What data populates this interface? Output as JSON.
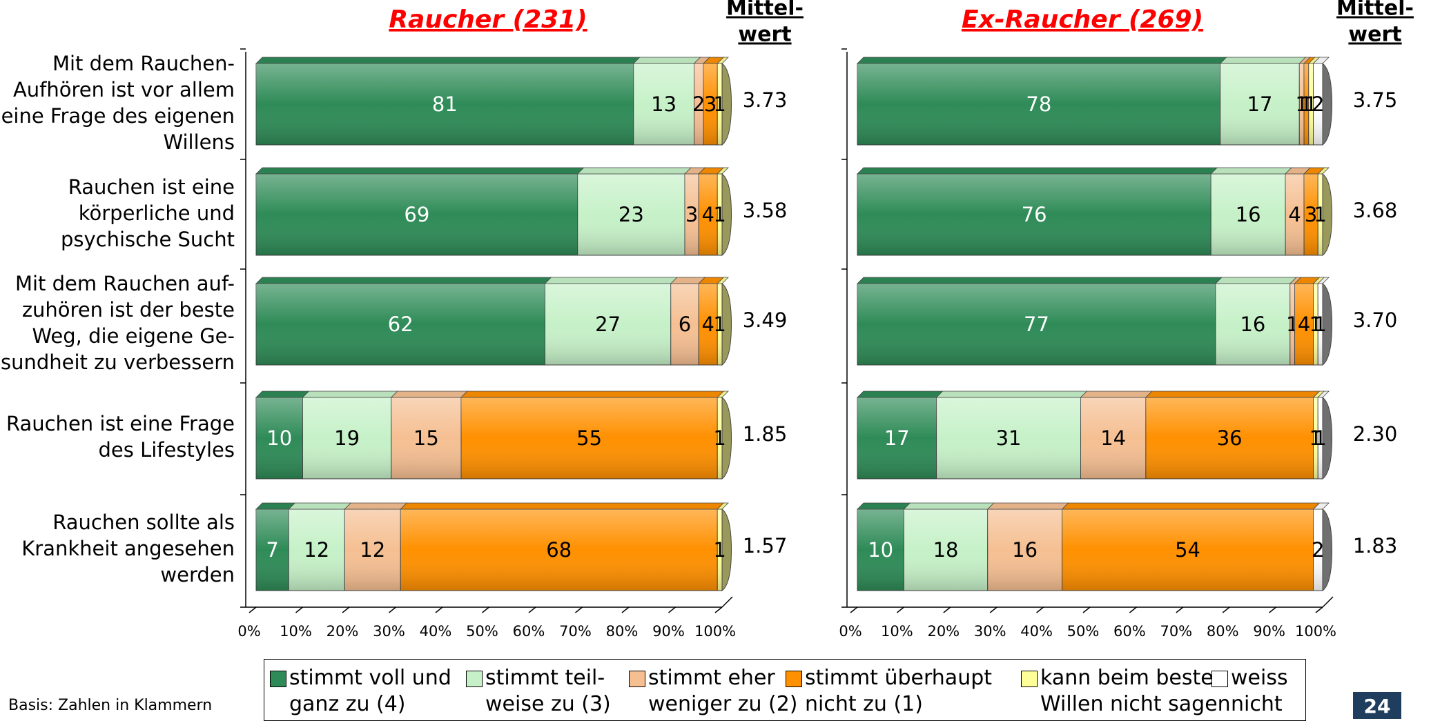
{
  "chart_data": [
    {
      "type": "bar",
      "orientation": "horizontal",
      "stacked": "percent",
      "title": "Raucher (231)",
      "mean_header": "Mittel-\nwert",
      "categories": [
        "Mit dem Rauchen-\nAufhören ist vor allem\neine Frage des eigenen\nWillens",
        "Rauchen ist eine\nkörperliche und\npsychische Sucht",
        "Mit dem Rauchen auf-\nzuhören ist der beste\nWeg, die eigene Ge-\nsundheit zu verbessern",
        "Rauchen ist eine Frage\ndes Lifestyles",
        "Rauchen sollte als\nKrankheit angesehen\nwerden"
      ],
      "series": [
        {
          "values": [
            81,
            69,
            62,
            10,
            7
          ]
        },
        {
          "values": [
            13,
            23,
            27,
            19,
            12
          ]
        },
        {
          "values": [
            2,
            3,
            6,
            15,
            12
          ]
        },
        {
          "values": [
            3,
            4,
            4,
            55,
            68
          ]
        },
        {
          "values": [
            1,
            1,
            1,
            1,
            1
          ]
        },
        {
          "values": [
            0,
            0,
            0,
            0,
            0
          ]
        }
      ],
      "means": [
        "3.73",
        "3.58",
        "3.49",
        "1.85",
        "1.57"
      ],
      "xlim": [
        0,
        100
      ],
      "xticks": [
        "0%",
        "10%",
        "20%",
        "30%",
        "40%",
        "50%",
        "60%",
        "70%",
        "80%",
        "90%",
        "100%"
      ],
      "grid": false
    },
    {
      "type": "bar",
      "orientation": "horizontal",
      "stacked": "percent",
      "title": "Ex-Raucher (269)",
      "mean_header": "Mittel-\nwert",
      "categories": [
        "Mit dem Rauchen-\nAufhören ist vor allem\neine Frage des eigenen\nWillens",
        "Rauchen ist eine\nkörperliche und\npsychische Sucht",
        "Mit dem Rauchen auf-\nzuhören ist der beste\nWeg, die eigene Ge-\nsundheit zu verbessern",
        "Rauchen ist eine Frage\ndes Lifestyles",
        "Rauchen sollte als\nKrankheit angesehen\nwerden"
      ],
      "series": [
        {
          "values": [
            78,
            76,
            77,
            17,
            10
          ]
        },
        {
          "values": [
            17,
            16,
            16,
            31,
            18
          ]
        },
        {
          "values": [
            1,
            4,
            1,
            14,
            16
          ]
        },
        {
          "values": [
            1,
            3,
            4,
            36,
            54
          ]
        },
        {
          "values": [
            1,
            1,
            1,
            1,
            0
          ]
        },
        {
          "values": [
            2,
            0,
            1,
            1,
            2
          ]
        }
      ],
      "means": [
        "3.75",
        "3.68",
        "3.70",
        "2.30",
        "1.83"
      ],
      "xlim": [
        0,
        100
      ],
      "xticks": [
        "0%",
        "10%",
        "20%",
        "30%",
        "40%",
        "50%",
        "60%",
        "70%",
        "80%",
        "90%",
        "100%"
      ],
      "grid": false
    }
  ],
  "legend": {
    "placement": "bottom",
    "items": [
      {
        "label": "stimmt voll und\nganz zu (4)"
      },
      {
        "label": "stimmt teil-\nweise zu (3)"
      },
      {
        "label": "stimmt eher\nweniger zu (2)"
      },
      {
        "label": "stimmt überhaupt\nnicht zu (1)"
      },
      {
        "label": "kann beim besten\nWillen nicht sagen"
      },
      {
        "label": "weiss\nnicht"
      }
    ]
  },
  "colors": [
    "#2e8b57",
    "#c6f1c8",
    "#f5bf92",
    "#ff9000",
    "#ffff99",
    "#ffffff"
  ],
  "footnote": "Basis: Zahlen in Klammern",
  "page_number": "24"
}
